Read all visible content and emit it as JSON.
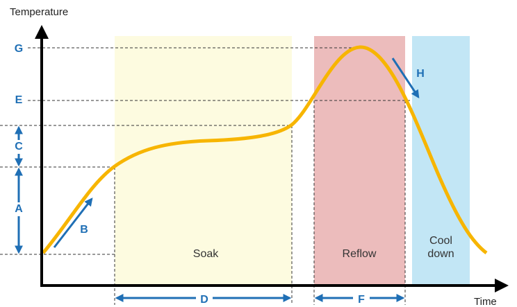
{
  "axes": {
    "y_label": "Temperature",
    "x_label": "Time"
  },
  "levels": [
    "G",
    "E",
    "C",
    "A"
  ],
  "arrows": [
    "B",
    "H",
    "D",
    "F"
  ],
  "zones": [
    "Soak",
    "Reflow",
    "Cool down"
  ]
}
